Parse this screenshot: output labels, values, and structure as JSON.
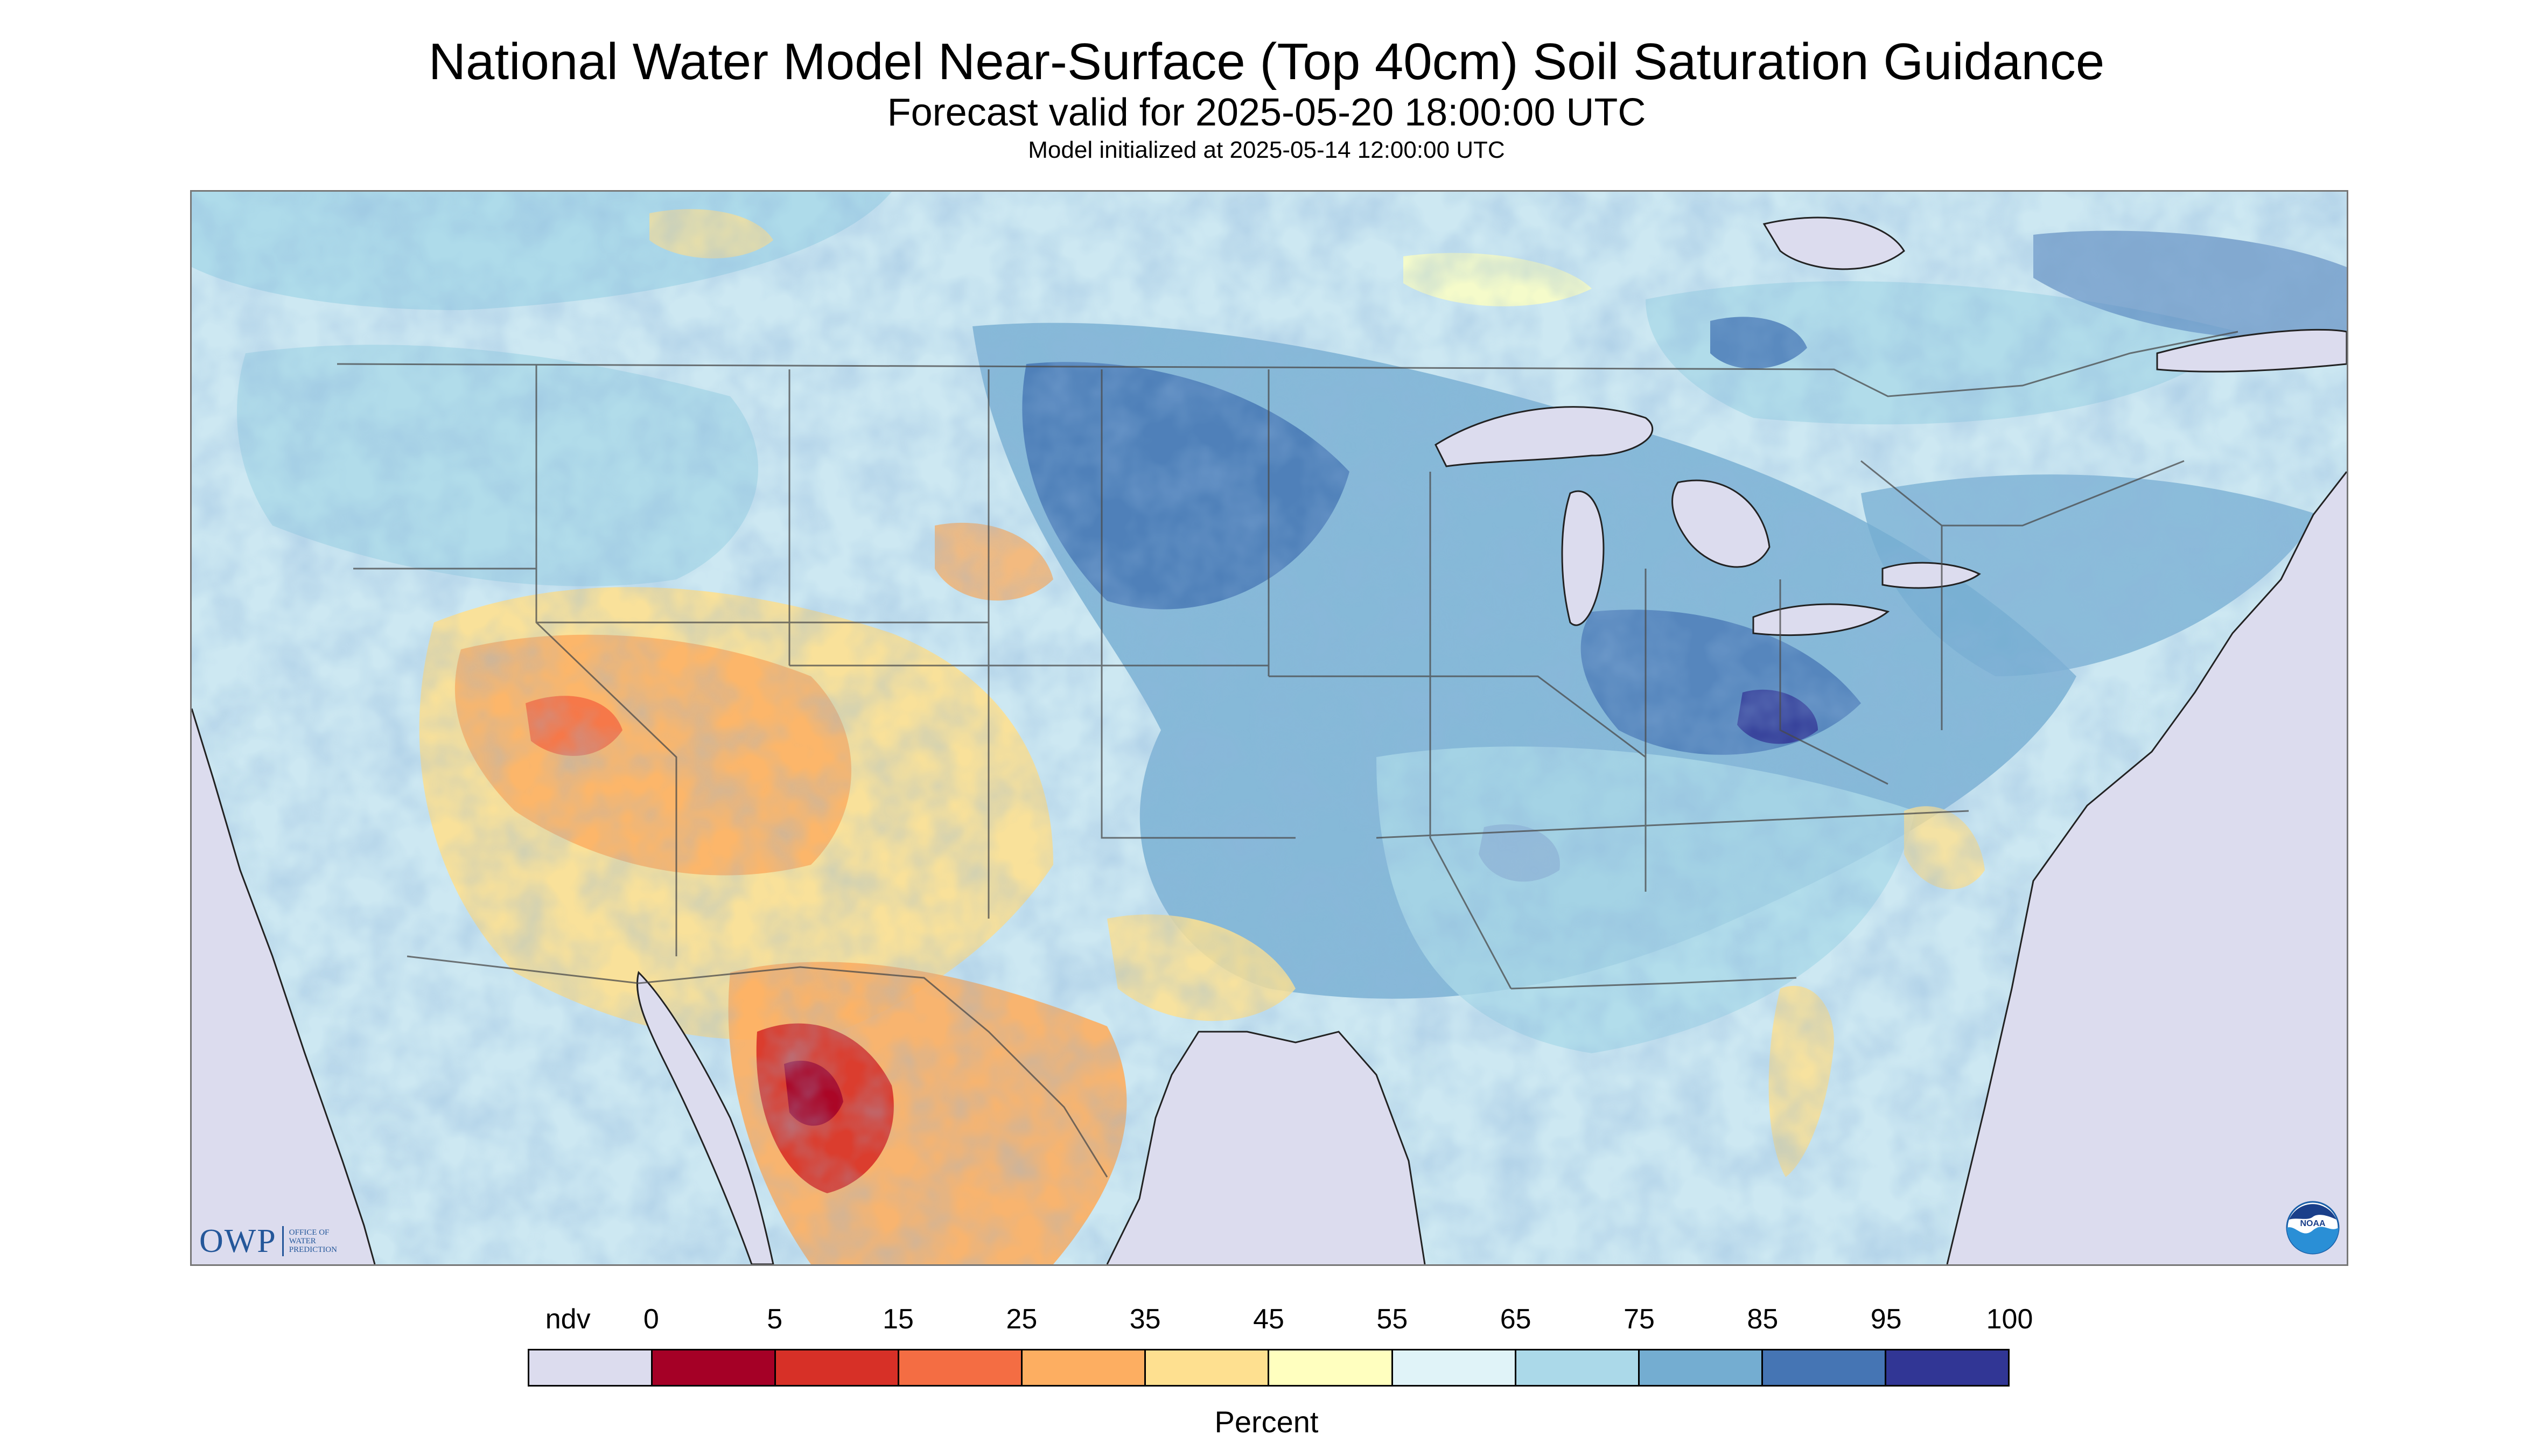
{
  "header": {
    "title": "National Water Model Near-Surface (Top 40cm) Soil Saturation Guidance",
    "subtitle": "Forecast valid for 2025-05-20 18:00:00 UTC",
    "init": "Model initialized at 2025-05-14 12:00:00 UTC"
  },
  "logos": {
    "owp_mark": "OWP",
    "owp_line1": "Office of",
    "owp_line2": "Water",
    "owp_line3": "Prediction",
    "noaa_text": "NOAA"
  },
  "colors": {
    "nodata": "#dcdcee",
    "water": "#dcdcee",
    "land_base": "#d9eef6",
    "border": "#4a4a4a"
  },
  "legend": {
    "unit": "Percent",
    "labels": [
      "ndv",
      "0",
      "5",
      "15",
      "25",
      "35",
      "45",
      "55",
      "65",
      "75",
      "85",
      "95",
      "100"
    ],
    "bins": [
      {
        "range": "ndv",
        "color": "#dcdcee"
      },
      {
        "range": "0-5",
        "color": "#a50026"
      },
      {
        "range": "5-15",
        "color": "#d73027"
      },
      {
        "range": "15-25",
        "color": "#f46d43"
      },
      {
        "range": "25-35",
        "color": "#fdae61"
      },
      {
        "range": "35-45",
        "color": "#fee090"
      },
      {
        "range": "45-55",
        "color": "#ffffbf"
      },
      {
        "range": "55-65",
        "color": "#e0f3f8"
      },
      {
        "range": "65-75",
        "color": "#abd9e9"
      },
      {
        "range": "75-85",
        "color": "#74add1"
      },
      {
        "range": "85-95",
        "color": "#4575b4"
      },
      {
        "range": "95-100",
        "color": "#313695"
      }
    ]
  }
}
